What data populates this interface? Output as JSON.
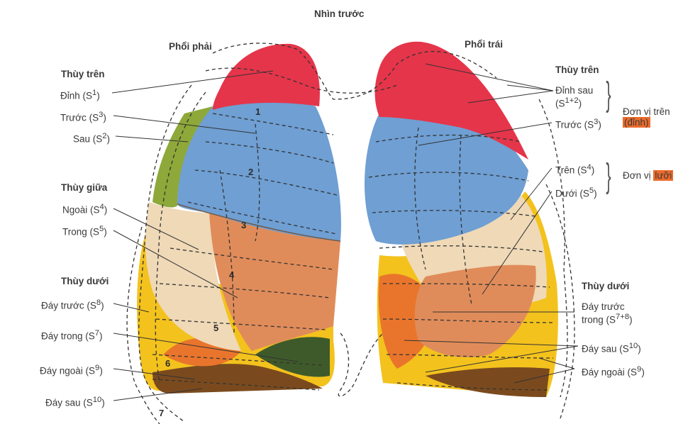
{
  "title": "Nhìn trước",
  "right_lung": {
    "title": "Phổi phải",
    "upper_lobe": {
      "heading": "Thùy trên",
      "items": [
        {
          "name": "Đỉnh (S",
          "sup": "1",
          "close": ")"
        },
        {
          "name": "Trước (S",
          "sup": "3",
          "close": ")"
        },
        {
          "name": "Sau (S",
          "sup": "2",
          "close": ")"
        }
      ]
    },
    "middle_lobe": {
      "heading": "Thùy giữa",
      "items": [
        {
          "name": "Ngoài (S",
          "sup": "4",
          "close": ")"
        },
        {
          "name": "Trong (S",
          "sup": "5",
          "close": ")"
        }
      ]
    },
    "lower_lobe": {
      "heading": "Thùy dưới",
      "items": [
        {
          "name": "Đáy trước (S",
          "sup": "8",
          "close": ")"
        },
        {
          "name": "Đáy trong (S",
          "sup": "7",
          "close": ")"
        },
        {
          "name": "Đáy ngoài (S",
          "sup": "9",
          "close": ")"
        },
        {
          "name": "Đáy sau (S",
          "sup": "10",
          "close": ")"
        }
      ]
    }
  },
  "left_lung": {
    "title": "Phổi trái",
    "upper_lobe": {
      "heading": "Thùy trên",
      "items": [
        {
          "name": "Đỉnh sau",
          "line2": "(S",
          "sup": "1+2",
          "close": ")"
        },
        {
          "name": "Trước (S",
          "sup": "3",
          "close": ")"
        },
        {
          "name": "Trên (S",
          "sup": "4",
          "close": ")"
        },
        {
          "name": "Dưới (S",
          "sup": "5",
          "close": ")"
        }
      ]
    },
    "groups": {
      "upper_unit": {
        "text": "Đơn vị trên",
        "highlight": "(đỉnh)"
      },
      "lingula_unit": {
        "text": "Đơn vị ",
        "highlight": "lưỡi"
      }
    },
    "lower_lobe": {
      "heading": "Thùy dưới",
      "items": [
        {
          "name": "Đáy trước",
          "line2": "trong (S",
          "sup": "7+8",
          "close": ")"
        },
        {
          "name": "Đáy sau (S",
          "sup": "10",
          "close": ")"
        },
        {
          "name": "Đáy ngoài (S",
          "sup": "9",
          "close": ")"
        }
      ]
    }
  },
  "rib_numbers": [
    "1",
    "2",
    "3",
    "4",
    "5",
    "6",
    "7"
  ],
  "colors": {
    "apical_red": "#e5354a",
    "anterior_blue": "#6f9fd3",
    "posterior_green": "#8ea83a",
    "lateral_cream": "#efd9b7",
    "medial_orange": "#e08c5a",
    "basal_yellow": "#f3c21d",
    "basal_dark": "#7a4a1e",
    "highlight": "#ec6b2c"
  }
}
